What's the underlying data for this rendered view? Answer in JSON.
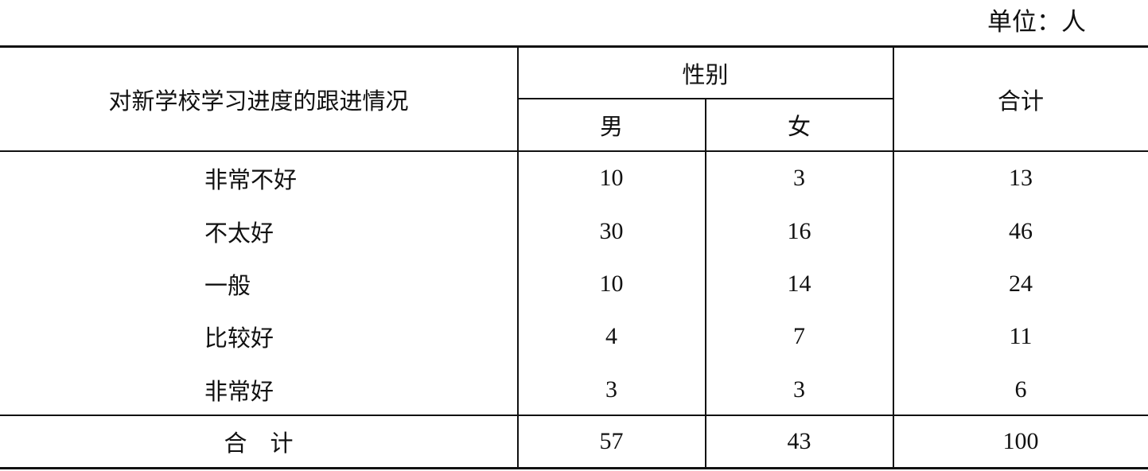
{
  "unit_label": "单位：人",
  "header": {
    "row_label": "对新学校学习进度的跟进情况",
    "gender_group": "性别",
    "male": "男",
    "female": "女",
    "total": "合计"
  },
  "rows": [
    {
      "label": "非常不好",
      "male": "10",
      "female": "3",
      "total": "13"
    },
    {
      "label": "不太好",
      "male": "30",
      "female": "16",
      "total": "46"
    },
    {
      "label": "一般",
      "male": "10",
      "female": "14",
      "total": "24"
    },
    {
      "label": "比较好",
      "male": "4",
      "female": "7",
      "total": "11"
    },
    {
      "label": "非常好",
      "male": "3",
      "female": "3",
      "total": "6"
    }
  ],
  "total_row": {
    "label": "合　计",
    "male": "57",
    "female": "43",
    "total": "100"
  }
}
